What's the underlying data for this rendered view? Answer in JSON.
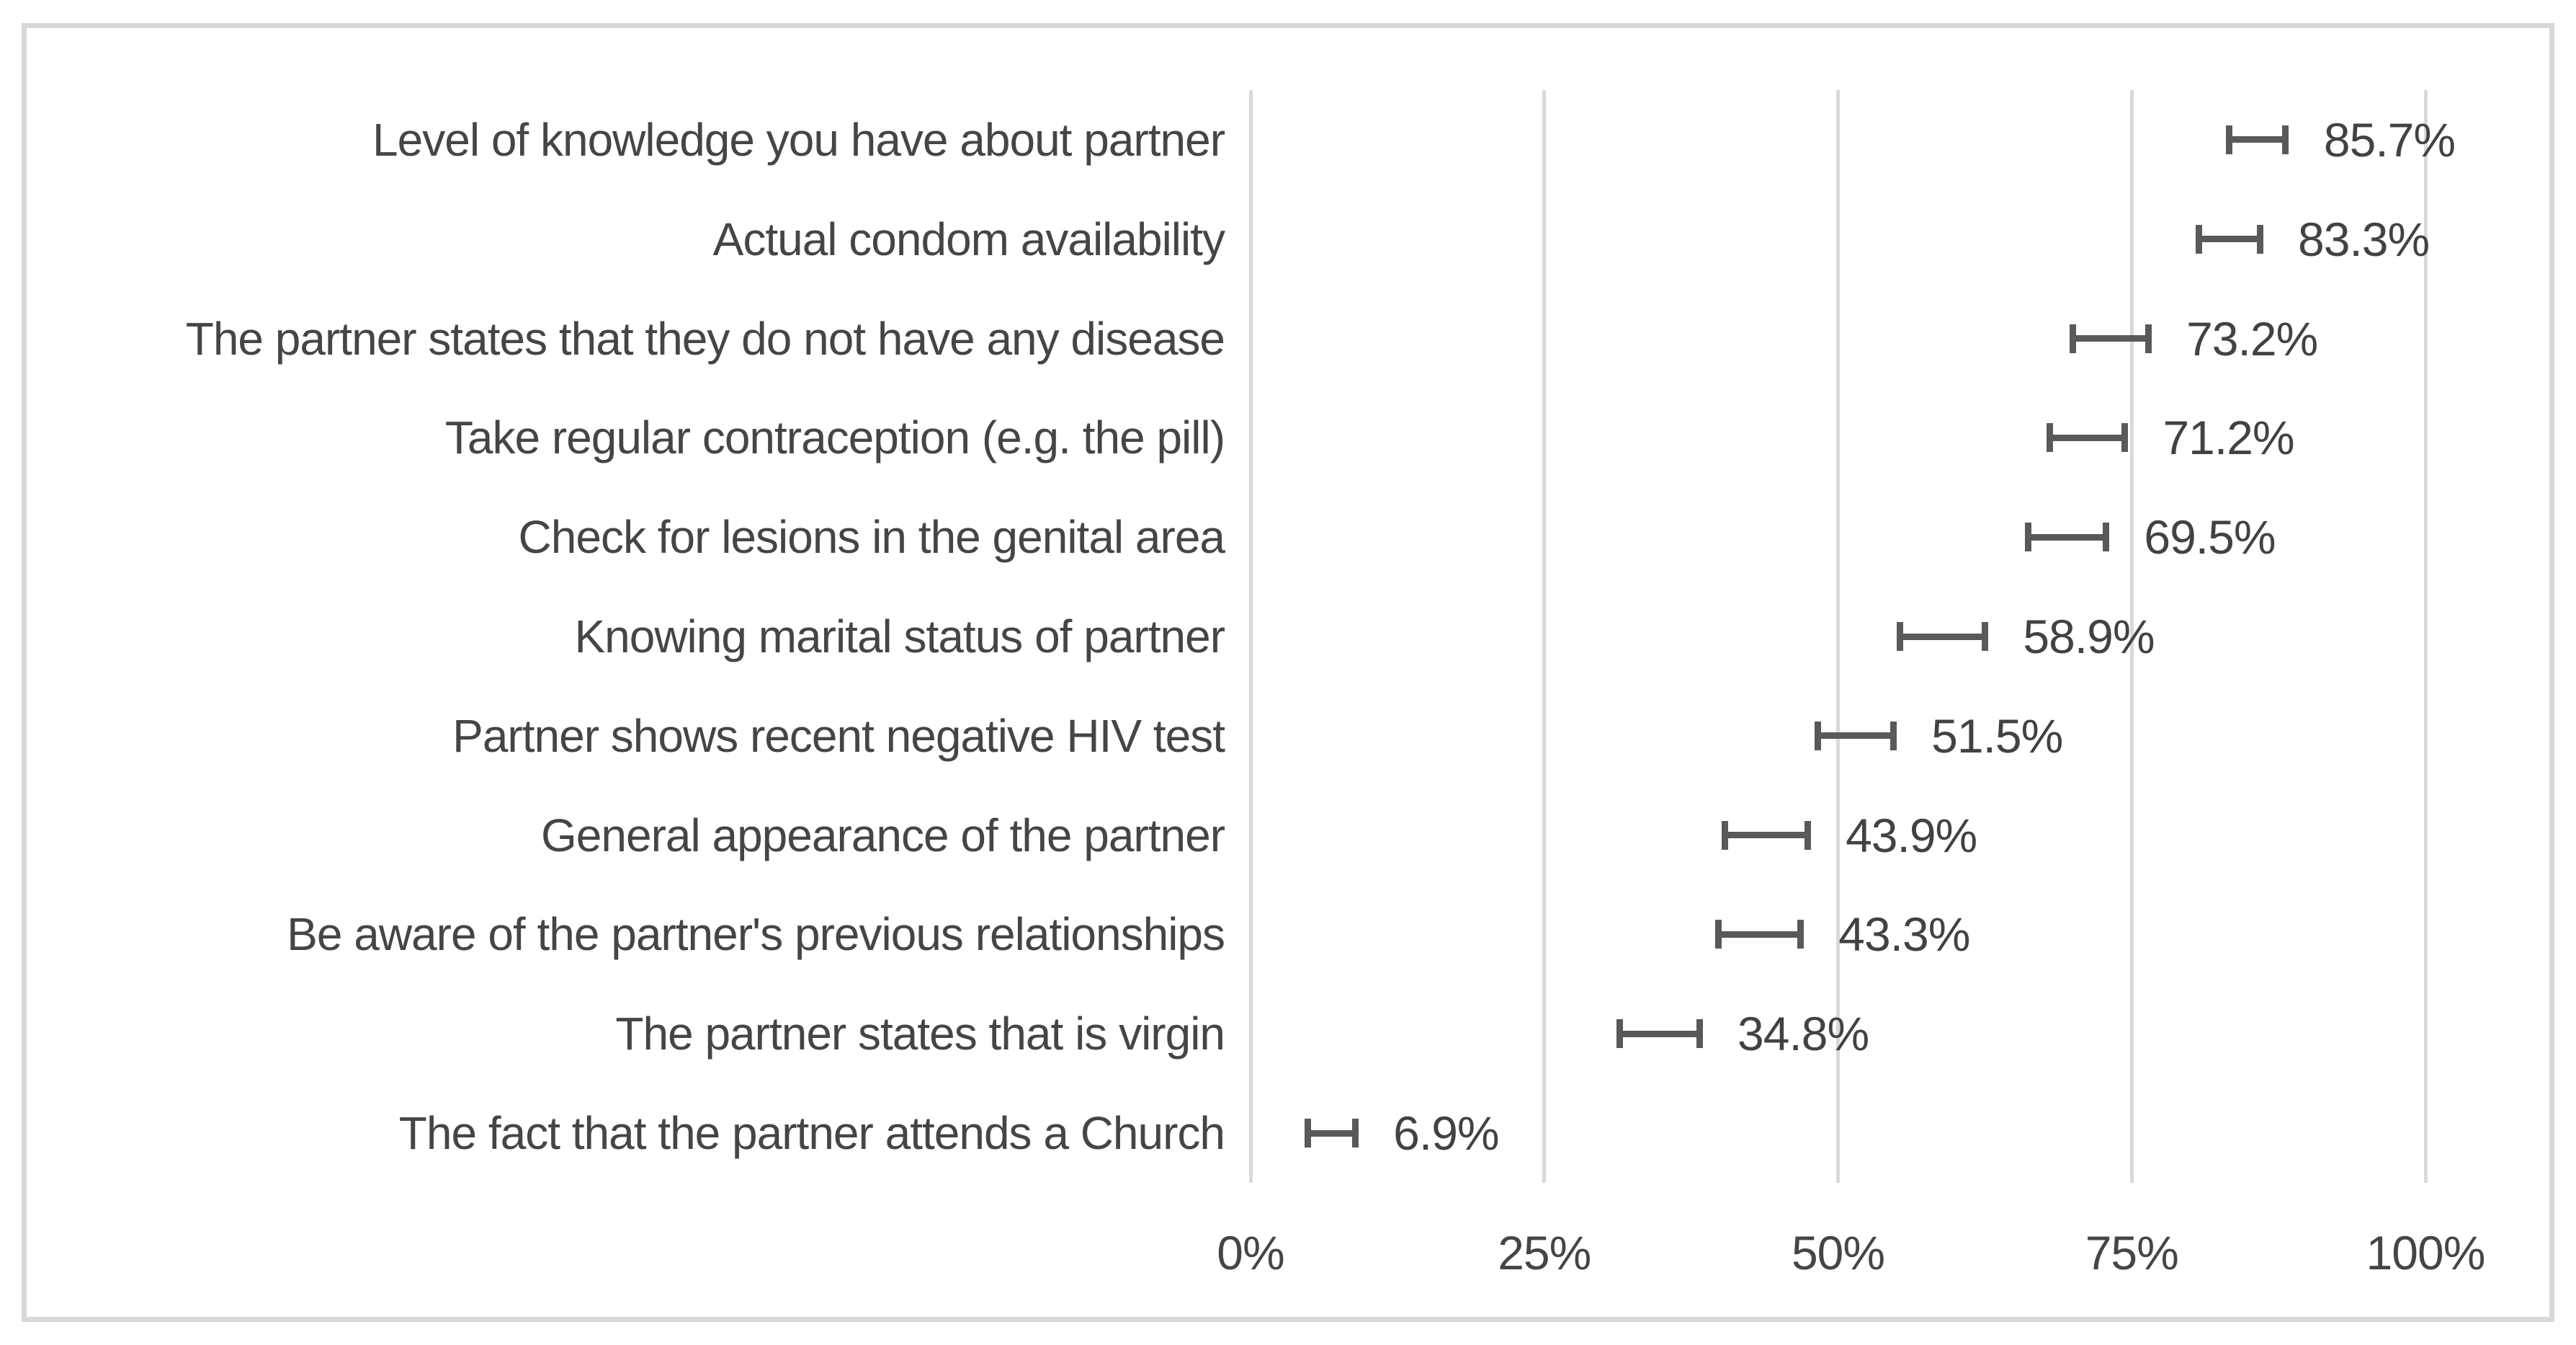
{
  "figure": {
    "background": "#ffffff",
    "border_color": "#d8d8d8"
  },
  "colors": {
    "text": "#454545",
    "value_text": "#424242",
    "error_bar": "#595959",
    "gridline": "#d9d9d9"
  },
  "chart_data": {
    "type": "scatter",
    "subtype": "horizontal-error-bar",
    "title": "",
    "xlabel": "",
    "ylabel": "",
    "xlim": [
      0,
      100
    ],
    "grid": "vertical-gridlines-on",
    "legend": "none",
    "x_ticks": [
      {
        "value": 0,
        "label": "0%"
      },
      {
        "value": 25,
        "label": "25%"
      },
      {
        "value": 50,
        "label": "50%"
      },
      {
        "value": 75,
        "label": "75%"
      },
      {
        "value": 100,
        "label": "100%"
      }
    ],
    "categories": [
      "Level of knowledge you have about partner",
      "Actual condom availability",
      "The partner states that they do not have any disease",
      "Take regular contraception (e.g. the pill)",
      "Check for lesions in the genital area",
      "Knowing marital status of partner",
      "Partner shows recent negative HIV test",
      "General appearance of the partner",
      "Be aware of the partner's previous relationships",
      "The partner states that is virgin",
      "The fact that the partner attends a Church"
    ],
    "values": [
      85.7,
      83.3,
      73.2,
      71.2,
      69.5,
      58.9,
      51.5,
      43.9,
      43.3,
      34.8,
      6.9
    ],
    "value_labels": [
      "85.7%",
      "83.3%",
      "73.2%",
      "71.2%",
      "69.5%",
      "58.9%",
      "51.5%",
      "43.9%",
      "43.3%",
      "34.8%",
      "6.9%"
    ],
    "ci_half": [
      2.4,
      2.6,
      3.2,
      3.2,
      3.3,
      3.6,
      3.2,
      3.5,
      3.5,
      3.4,
      2.0
    ]
  }
}
